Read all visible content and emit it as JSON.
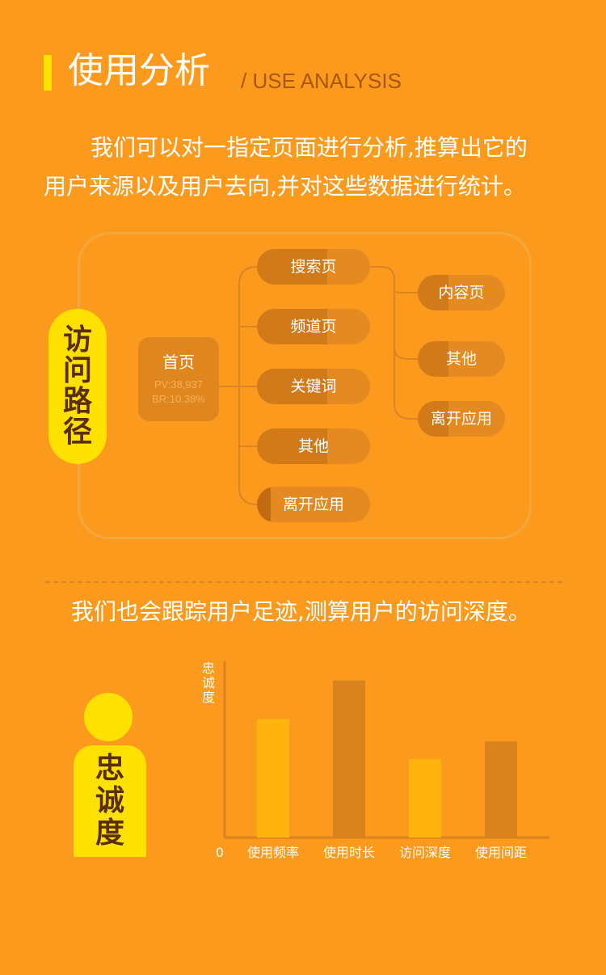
{
  "header": {
    "title": "使用分析",
    "subtitle": "/ USE ANALYSIS"
  },
  "intro": {
    "line1": "我们可以对一指定页面进行分析,推算出它的",
    "line2": "用户来源以及用户去向,并对这些数据进行统计。"
  },
  "path_diagram": {
    "badge": [
      "访",
      "问",
      "路",
      "径"
    ],
    "home": {
      "title": "首页",
      "pv": "PV:38,937",
      "br": "BR:10.38%"
    },
    "level1": [
      "搜索页",
      "频道页",
      "关键词",
      "其他",
      "离开应用"
    ],
    "level2": [
      "内容页",
      "其他",
      "离开应用"
    ]
  },
  "tracking_text": "我们也会跟踪用户足迹,测算用户的访问深度。",
  "loyalty_badge": [
    "忠",
    "诚",
    "度"
  ],
  "chart_data": {
    "type": "bar",
    "title": "",
    "xlabel": "",
    "ylabel": "忠诚度",
    "ylabel_chars": [
      "忠",
      "诚",
      "度"
    ],
    "origin_label": "0",
    "categories": [
      "使用频率",
      "使用时长",
      "访问深度",
      "使用间距"
    ],
    "values": [
      74,
      98,
      49,
      60
    ],
    "ylim": [
      0,
      110
    ],
    "colors": [
      "#FFB30F",
      "#D9831F",
      "#FFB30F",
      "#D9831F"
    ],
    "axis_color": "#D9831F",
    "label_color": "#ffffff"
  }
}
